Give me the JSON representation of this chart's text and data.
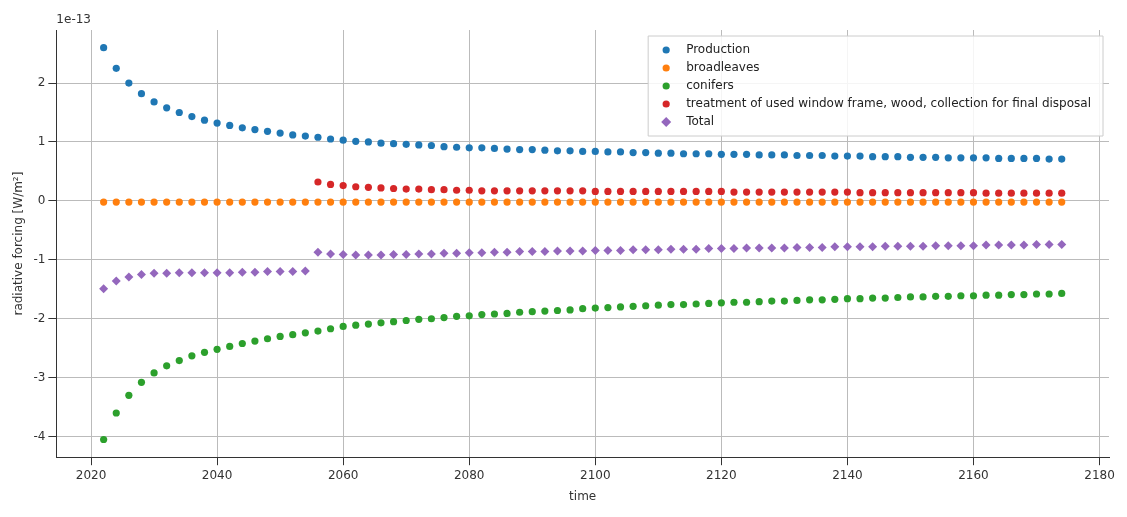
{
  "chart_data": {
    "type": "scatter",
    "xlabel": "time",
    "ylabel": "radiative forcing [W/m²]",
    "annotations": [
      "1e-13"
    ],
    "xlim": [
      2014.5,
      2181.5
    ],
    "ylim": [
      -4.35,
      2.9
    ],
    "xticks": [
      2020,
      2040,
      2060,
      2080,
      2100,
      2120,
      2140,
      2160,
      2180
    ],
    "yticks": [
      -4,
      -3,
      -2,
      -1,
      0,
      1,
      2
    ],
    "grid": true,
    "legend": "top right",
    "x": [
      2022,
      2024,
      2026,
      2028,
      2030,
      2032,
      2034,
      2036,
      2038,
      2040,
      2042,
      2044,
      2046,
      2048,
      2050,
      2052,
      2054,
      2056,
      2058,
      2060,
      2062,
      2064,
      2066,
      2068,
      2070,
      2072,
      2074,
      2076,
      2078,
      2080,
      2082,
      2084,
      2086,
      2088,
      2090,
      2092,
      2094,
      2096,
      2098,
      2100,
      2102,
      2104,
      2106,
      2108,
      2110,
      2112,
      2114,
      2116,
      2118,
      2120,
      2122,
      2124,
      2126,
      2128,
      2130,
      2132,
      2134,
      2136,
      2138,
      2140,
      2142,
      2144,
      2146,
      2148,
      2150,
      2152,
      2154,
      2156,
      2158,
      2160,
      2162,
      2164,
      2166,
      2168,
      2170,
      2172,
      2174
    ],
    "series": [
      {
        "name": "Production",
        "color": "#1f77b4",
        "marker": "circle",
        "values": [
          2.6,
          2.25,
          2.0,
          1.82,
          1.68,
          1.58,
          1.5,
          1.43,
          1.37,
          1.32,
          1.28,
          1.24,
          1.21,
          1.18,
          1.15,
          1.12,
          1.1,
          1.08,
          1.05,
          1.03,
          1.01,
          1.0,
          0.98,
          0.97,
          0.96,
          0.95,
          0.94,
          0.92,
          0.91,
          0.9,
          0.9,
          0.89,
          0.88,
          0.87,
          0.87,
          0.86,
          0.85,
          0.85,
          0.84,
          0.84,
          0.83,
          0.83,
          0.82,
          0.82,
          0.81,
          0.81,
          0.8,
          0.8,
          0.8,
          0.79,
          0.79,
          0.79,
          0.78,
          0.78,
          0.78,
          0.77,
          0.77,
          0.77,
          0.76,
          0.76,
          0.76,
          0.75,
          0.75,
          0.75,
          0.74,
          0.74,
          0.74,
          0.73,
          0.73,
          0.73,
          0.73,
          0.72,
          0.72,
          0.72,
          0.72,
          0.71,
          0.71
        ]
      },
      {
        "name": "broadleaves",
        "color": "#ff7f0e",
        "marker": "circle",
        "values": [
          -0.02,
          -0.02,
          -0.02,
          -0.02,
          -0.02,
          -0.02,
          -0.02,
          -0.02,
          -0.02,
          -0.02,
          -0.02,
          -0.02,
          -0.02,
          -0.02,
          -0.02,
          -0.02,
          -0.02,
          -0.02,
          -0.02,
          -0.02,
          -0.02,
          -0.02,
          -0.02,
          -0.02,
          -0.02,
          -0.02,
          -0.02,
          -0.02,
          -0.02,
          -0.02,
          -0.02,
          -0.02,
          -0.02,
          -0.02,
          -0.02,
          -0.02,
          -0.02,
          -0.02,
          -0.02,
          -0.02,
          -0.02,
          -0.02,
          -0.02,
          -0.02,
          -0.02,
          -0.02,
          -0.02,
          -0.02,
          -0.02,
          -0.02,
          -0.02,
          -0.02,
          -0.02,
          -0.02,
          -0.02,
          -0.02,
          -0.02,
          -0.02,
          -0.02,
          -0.02,
          -0.02,
          -0.02,
          -0.02,
          -0.02,
          -0.02,
          -0.02,
          -0.02,
          -0.02,
          -0.02,
          -0.02,
          -0.02,
          -0.02,
          -0.02,
          -0.02,
          -0.02,
          -0.02,
          -0.02
        ]
      },
      {
        "name": "conifers",
        "color": "#2ca02c",
        "marker": "circle",
        "values": [
          -4.05,
          -3.6,
          -3.3,
          -3.08,
          -2.92,
          -2.8,
          -2.71,
          -2.63,
          -2.57,
          -2.52,
          -2.47,
          -2.42,
          -2.38,
          -2.34,
          -2.3,
          -2.27,
          -2.24,
          -2.21,
          -2.17,
          -2.13,
          -2.11,
          -2.09,
          -2.07,
          -2.05,
          -2.03,
          -2.01,
          -2.0,
          -1.98,
          -1.96,
          -1.95,
          -1.93,
          -1.92,
          -1.91,
          -1.89,
          -1.88,
          -1.87,
          -1.86,
          -1.85,
          -1.83,
          -1.82,
          -1.81,
          -1.8,
          -1.79,
          -1.78,
          -1.77,
          -1.76,
          -1.76,
          -1.75,
          -1.74,
          -1.73,
          -1.72,
          -1.72,
          -1.71,
          -1.7,
          -1.7,
          -1.69,
          -1.68,
          -1.68,
          -1.67,
          -1.66,
          -1.66,
          -1.65,
          -1.65,
          -1.64,
          -1.63,
          -1.63,
          -1.62,
          -1.62,
          -1.61,
          -1.61,
          -1.6,
          -1.6,
          -1.59,
          -1.59,
          -1.58,
          -1.58,
          -1.57
        ]
      },
      {
        "name": "treatment of used window frame, wood, collection for final disposal",
        "color": "#d62728",
        "marker": "circle",
        "values": [
          null,
          null,
          null,
          null,
          null,
          null,
          null,
          null,
          null,
          null,
          null,
          null,
          null,
          null,
          null,
          null,
          null,
          0.32,
          0.28,
          0.26,
          0.24,
          0.23,
          0.22,
          0.21,
          0.2,
          0.2,
          0.19,
          0.19,
          0.18,
          0.18,
          0.17,
          0.17,
          0.17,
          0.17,
          0.17,
          0.17,
          0.17,
          0.17,
          0.17,
          0.16,
          0.16,
          0.16,
          0.16,
          0.16,
          0.16,
          0.16,
          0.16,
          0.16,
          0.16,
          0.16,
          0.15,
          0.15,
          0.15,
          0.15,
          0.15,
          0.15,
          0.15,
          0.15,
          0.15,
          0.15,
          0.14,
          0.14,
          0.14,
          0.14,
          0.14,
          0.14,
          0.14,
          0.14,
          0.14,
          0.14,
          0.13,
          0.13,
          0.13,
          0.13,
          0.13,
          0.13,
          0.13
        ]
      },
      {
        "name": "Total",
        "color": "#9467bd",
        "marker": "diamond",
        "values": [
          -1.49,
          -1.36,
          -1.29,
          -1.25,
          -1.23,
          -1.23,
          -1.22,
          -1.22,
          -1.22,
          -1.22,
          -1.22,
          -1.21,
          -1.21,
          -1.2,
          -1.2,
          -1.2,
          -1.19,
          -0.87,
          -0.9,
          -0.91,
          -0.92,
          -0.92,
          -0.92,
          -0.91,
          -0.91,
          -0.9,
          -0.9,
          -0.89,
          -0.89,
          -0.88,
          -0.88,
          -0.87,
          -0.87,
          -0.86,
          -0.86,
          -0.86,
          -0.85,
          -0.85,
          -0.85,
          -0.84,
          -0.84,
          -0.84,
          -0.83,
          -0.83,
          -0.83,
          -0.82,
          -0.82,
          -0.82,
          -0.81,
          -0.81,
          -0.81,
          -0.8,
          -0.8,
          -0.8,
          -0.8,
          -0.79,
          -0.79,
          -0.79,
          -0.78,
          -0.78,
          -0.78,
          -0.78,
          -0.77,
          -0.77,
          -0.77,
          -0.77,
          -0.76,
          -0.76,
          -0.76,
          -0.76,
          -0.75,
          -0.75,
          -0.75,
          -0.75,
          -0.74,
          -0.74,
          -0.74
        ]
      }
    ]
  }
}
